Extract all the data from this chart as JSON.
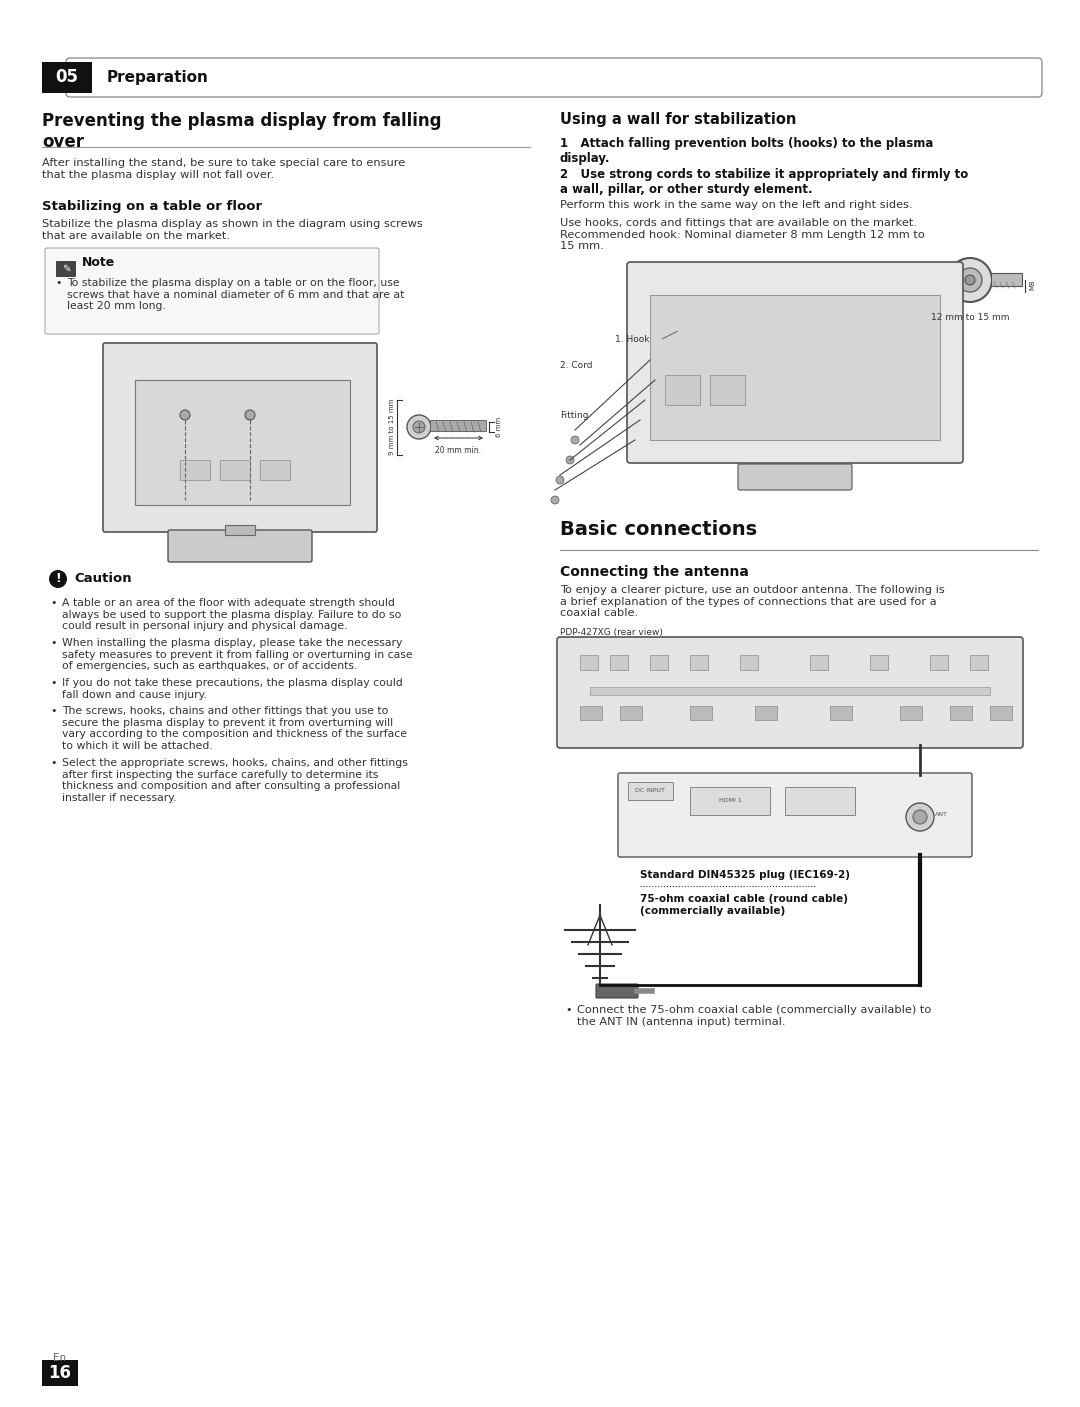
{
  "page_bg": "#ffffff",
  "header_bar_color": "#111111",
  "header_text_color": "#ffffff",
  "header_number": "05",
  "header_title": "Preparation",
  "section1_title": "Preventing the plasma display from falling\nover",
  "section1_intro": "After installing the stand, be sure to take special care to ensure\nthat the plasma display will not fall over.",
  "subsection1_title": "Stabilizing on a table or floor",
  "subsection1_body": "Stabilize the plasma display as shown in the diagram using screws\nthat are available on the market.",
  "note_title": "Note",
  "note_body_line1": "To stabilize the plasma display on a table or on the floor, use",
  "note_body_line2": "screws that have a nominal diameter of 6 mm and that are at",
  "note_body_line3": "least 20 mm long.",
  "caution_title": "Caution",
  "caution_bullets": [
    "A table or an area of the floor with adequate strength should\nalways be used to support the plasma display. Failure to do so\ncould result in personal injury and physical damage.",
    "When installing the plasma display, please take the necessary\nsafety measures to prevent it from falling or overturning in case\nof emergencies, such as earthquakes, or of accidents.",
    "If you do not take these precautions, the plasma display could\nfall down and cause injury.",
    "The screws, hooks, chains and other fittings that you use to\nsecure the plasma display to prevent it from overturning will\nvary according to the composition and thickness of the surface\nto which it will be attached.",
    "Select the appropriate screws, hooks, chains, and other fittings\nafter first inspecting the surface carefully to determine its\nthickness and composition and after consulting a professional\ninstaller if necessary."
  ],
  "right_section_title": "Using a wall for stabilization",
  "right_step1_bold": "1   Attach falling prevention bolts (hooks) to the plasma\ndisplay.",
  "right_step2_bold": "2   Use strong cords to stabilize it appropriately and firmly to\na wall, pillar, or other sturdy element.",
  "right_step2_body": "Perform this work in the same way on the left and right sides.",
  "right_body": "Use hooks, cords and fittings that are available on the market.\nRecommended hook: Nominal diameter 8 mm Length 12 mm to\n15 mm.",
  "basic_connections_title": "Basic connections",
  "connecting_antenna_title": "Connecting the antenna",
  "connecting_antenna_body": "To enjoy a clearer picture, use an outdoor antenna. The following is\na brief explanation of the types of connections that are used for a\ncoaxial cable.",
  "antenna_label": "PDP-427XG (rear view)",
  "cable_label1": "Standard DIN45325 plug (IEC169-2)",
  "cable_label2": "75-ohm coaxial cable (round cable)\n(commercially available)",
  "bullet_antenna": "Connect the 75-ohm coaxial cable (commercially available) to\nthe ANT IN (antenna input) terminal.",
  "footer_page": "16",
  "footer_lang": "En",
  "text_color": "#111111",
  "body_text_color": "#333333",
  "mid_col": 540
}
